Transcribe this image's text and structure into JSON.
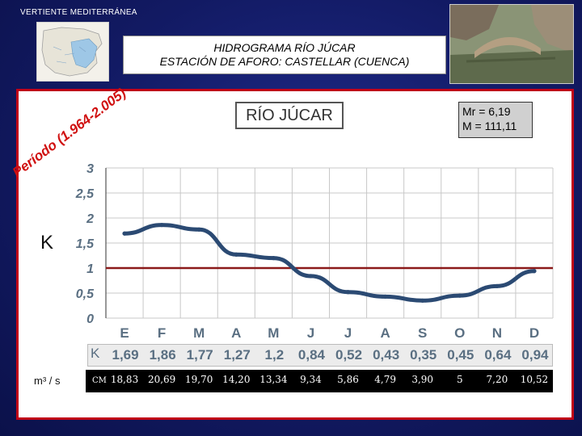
{
  "header": {
    "section_label": "VERTIENTE  MEDITERRÁNEA"
  },
  "title": {
    "line1": "HIDROGRAMA  RÍO  JÚCAR",
    "line2": "ESTACIÓN DE AFORO:   CASTELLAR (CUENCA)"
  },
  "period_label": "Período (1.964-2.005)",
  "river_name": "RÍO JÚCAR",
  "stats": {
    "mr": "Mr = 6,19",
    "m": "M = 111,11"
  },
  "k_label": "K",
  "unit_label": "m³ / s",
  "cm_label": "CM",
  "colors": {
    "line": "#2b4a73",
    "reference_line": "#8b1a1a",
    "panel_border": "#c00018",
    "period_text": "#d01010"
  },
  "chart_data": {
    "type": "line",
    "categories": [
      "E",
      "F",
      "M",
      "A",
      "M",
      "J",
      "J",
      "A",
      "S",
      "O",
      "N",
      "D"
    ],
    "values": [
      1.69,
      1.86,
      1.77,
      1.27,
      1.2,
      0.84,
      0.52,
      0.43,
      0.35,
      0.45,
      0.64,
      0.94
    ],
    "value_labels": [
      "1,69",
      "1,86",
      "1,77",
      "1,27",
      "1,2",
      "0,84",
      "0,52",
      "0,43",
      "0,35",
      "0,45",
      "0,64",
      "0,94"
    ],
    "monthly_flow_labels": [
      "18,83",
      "20,69",
      "19,70",
      "14,20",
      "13,34",
      "9,34",
      "5,86",
      "4,79",
      "3,90",
      "5",
      "7,20",
      "10,52"
    ],
    "y_ticks": [
      "0",
      "0,5",
      "1",
      "1,5",
      "2",
      "2,5",
      "3"
    ],
    "ylim": [
      0,
      3
    ],
    "reference_value": 1,
    "grid": true
  }
}
